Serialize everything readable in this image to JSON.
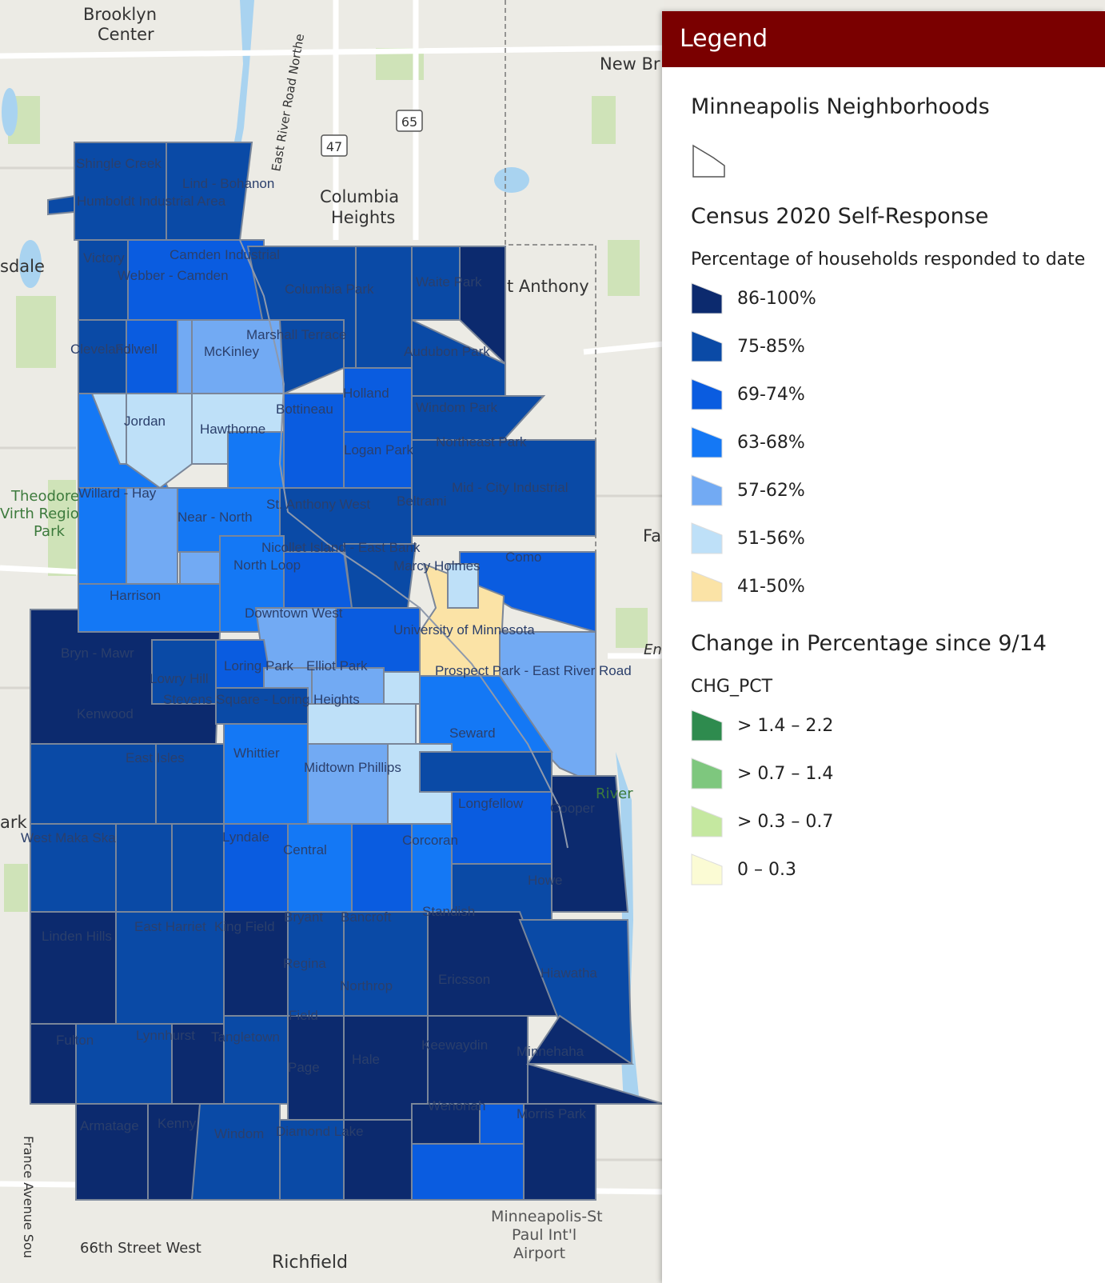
{
  "legend": {
    "header": "Legend",
    "layer1_title": "Minneapolis Neighborhoods",
    "layer2_title": "Census 2020 Self-Response",
    "layer2_subtitle": "Percentage of households responded to date",
    "response_classes": [
      {
        "label": "86-100%",
        "color": "#0c2a6e"
      },
      {
        "label": "75-85%",
        "color": "#0a4aa6"
      },
      {
        "label": "69-74%",
        "color": "#0a5ce0"
      },
      {
        "label": "63-68%",
        "color": "#1478f5"
      },
      {
        "label": "57-62%",
        "color": "#72aaf3"
      },
      {
        "label": "51-56%",
        "color": "#bee0f8"
      },
      {
        "label": "41-50%",
        "color": "#fbe3a6"
      }
    ],
    "layer3_title": "Change in Percentage since 9/14",
    "layer3_subtitle": "CHG_PCT",
    "change_classes": [
      {
        "label": "> 1.4 – 2.2",
        "color": "#2e8b4e"
      },
      {
        "label": "> 0.7 – 1.4",
        "color": "#7ec77e"
      },
      {
        "label": "> 0.3 – 0.7",
        "color": "#c5e8a0"
      },
      {
        "label": "0 – 0.3",
        "color": "#fbfbd4"
      }
    ]
  },
  "map": {
    "places": [
      {
        "text": "Brooklyn",
        "id": "brooklyn1"
      },
      {
        "text": "Center",
        "id": "brooklyn2"
      },
      {
        "text": "Columbia",
        "id": "columbia1"
      },
      {
        "text": "Heights",
        "id": "columbia2"
      },
      {
        "text": "New Br",
        "id": "newbr"
      },
      {
        "text": "t Anthony",
        "id": "stanthony"
      },
      {
        "text": "sdale",
        "id": "sdale"
      },
      {
        "text": "Theodore",
        "id": "theo1"
      },
      {
        "text": "Virth Regio",
        "id": "theo2"
      },
      {
        "text": "Park",
        "id": "theo3"
      },
      {
        "text": "ark",
        "id": "ark"
      },
      {
        "text": "Fa",
        "id": "fa"
      },
      {
        "text": "En",
        "id": "en"
      },
      {
        "text": "River",
        "id": "river"
      },
      {
        "text": "Minneapolis-St",
        "id": "msp1"
      },
      {
        "text": "Paul Int'l",
        "id": "msp2"
      },
      {
        "text": "Airport",
        "id": "msp3"
      },
      {
        "text": "66th Street West",
        "id": "st66"
      },
      {
        "text": "Richfield",
        "id": "richfield"
      },
      {
        "text": "France Avenue Sou",
        "id": "france"
      },
      {
        "text": "East River Road Northe",
        "id": "eastriver"
      }
    ],
    "shields": [
      "65",
      "47"
    ],
    "neighborhoods": [
      "Shingle Creek",
      "Lind - Bohanon",
      "Humboldt Industrial Area",
      "Victory",
      "Camden Industrial",
      "Webber - Camden",
      "Columbia Park",
      "Waite Park",
      "Marshall Terrace",
      "Cleveland",
      "Folwell",
      "McKinley",
      "Audubon Park",
      "Holland",
      "Jordan",
      "Hawthorne",
      "Bottineau",
      "Windom Park",
      "Northeast Park",
      "Logan Park",
      "Willard - Hay",
      "Mid - City Industrial",
      "St. Anthony West",
      "Beltrami",
      "Near - North",
      "Nicollet Island - East Bank",
      "Como",
      "North Loop",
      "Marcy Holmes",
      "Harrison",
      "Downtown West",
      "University of Minnesota",
      "Bryn - Mawr",
      "Loring Park",
      "Elliot Park",
      "Prospect Park - East River Road",
      "Lowry Hill",
      "Kenwood",
      "Stevens Square - Loring Heights",
      "Seward",
      "East Isles",
      "Whittier",
      "Midtown Phillips",
      "Longfellow",
      "Cooper",
      "West Maka Ska",
      "Lyndale",
      "Central",
      "Corcoran",
      "Howe",
      "Standish",
      "Bryant",
      "Bancroft",
      "Linden Hills",
      "East Harriet",
      "King Field",
      "Regina",
      "Northrop",
      "Ericsson",
      "Hiawatha",
      "Field",
      "Fulton",
      "Lynnhurst",
      "Tangletown",
      "Keewaydin",
      "Minnehaha",
      "Hale",
      "Page",
      "Wenonah",
      "Morris Park",
      "Armatage",
      "Kenny",
      "Windom",
      "Diamond Lake"
    ]
  }
}
